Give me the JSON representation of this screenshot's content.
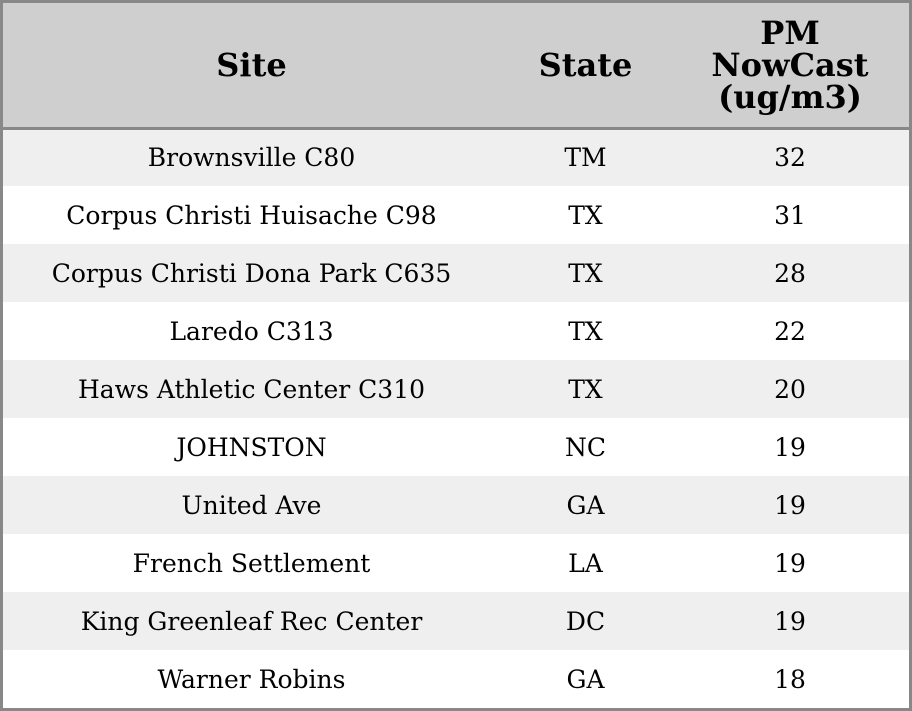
{
  "table": {
    "headers": {
      "site": "Site",
      "state": "State",
      "pm_lines": [
        "PM",
        "NowCast",
        "(ug/m3)"
      ]
    },
    "rows": [
      {
        "site": "Brownsville C80",
        "state": "TM",
        "pm": "32"
      },
      {
        "site": "Corpus Christi Huisache C98",
        "state": "TX",
        "pm": "31"
      },
      {
        "site": "Corpus Christi Dona Park C635",
        "state": "TX",
        "pm": "28"
      },
      {
        "site": "Laredo C313",
        "state": "TX",
        "pm": "22"
      },
      {
        "site": "Haws Athletic Center C310",
        "state": "TX",
        "pm": "20"
      },
      {
        "site": "JOHNSTON",
        "state": "NC",
        "pm": "19"
      },
      {
        "site": "United Ave",
        "state": "GA",
        "pm": "19"
      },
      {
        "site": "French Settlement",
        "state": "LA",
        "pm": "19"
      },
      {
        "site": "King Greenleaf Rec Center",
        "state": "DC",
        "pm": "19"
      },
      {
        "site": "Warner Robins",
        "state": "GA",
        "pm": "18"
      }
    ]
  },
  "colors": {
    "header_bg": "#cfcfcf",
    "row_alt_bg": "#efefef",
    "row_bg": "#ffffff",
    "border": "#888888"
  }
}
